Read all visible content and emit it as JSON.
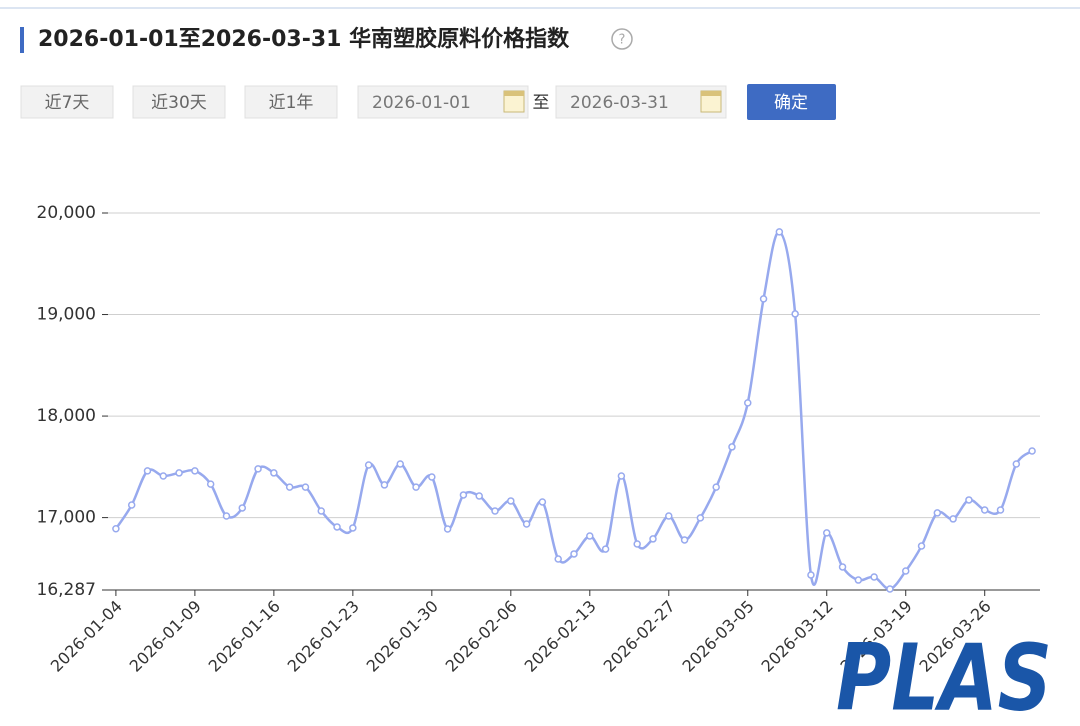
{
  "header": {
    "title": "2026-01-01至2026-03-31 华南塑胶原料价格指数",
    "help_icon": "?"
  },
  "controls": {
    "buttons": [
      "近7天",
      "近30天",
      "近1年"
    ],
    "start_date": "2026-01-01",
    "separator": "至",
    "end_date": "2026-03-31",
    "confirm": "确定"
  },
  "logo": "PLAS",
  "chart_data": {
    "type": "line",
    "categories": [
      "2026-01-04",
      null,
      null,
      null,
      null,
      "2026-01-09",
      null,
      null,
      null,
      null,
      "2026-01-16",
      null,
      null,
      null,
      null,
      "2026-01-23",
      null,
      null,
      null,
      null,
      "2026-01-30",
      null,
      null,
      null,
      null,
      "2026-02-06",
      null,
      null,
      null,
      null,
      "2026-02-13",
      null,
      null,
      null,
      null,
      "2026-02-27",
      null,
      null,
      null,
      null,
      "2026-03-05",
      null,
      null,
      null,
      null,
      "2026-03-12",
      null,
      null,
      null,
      null,
      "2026-03-19",
      null,
      null,
      null,
      null,
      "2026-03-26",
      null,
      null,
      null
    ],
    "values": [
      16890,
      17124,
      17460,
      17410,
      17440,
      17460,
      17330,
      17016,
      17095,
      17480,
      17440,
      17300,
      17300,
      17065,
      16908,
      16898,
      17518,
      17322,
      17528,
      17300,
      17400,
      16888,
      17223,
      17213,
      17065,
      17164,
      16937,
      17154,
      16592,
      16642,
      16819,
      16690,
      17410,
      16740,
      16790,
      17016,
      16780,
      16997,
      17300,
      17696,
      18130,
      19154,
      19814,
      19006,
      16435,
      16849,
      16514,
      16385,
      16415,
      16297,
      16474,
      16720,
      17046,
      16987,
      17174,
      17075,
      17075,
      17528,
      17656
    ],
    "color": "#97a9ee",
    "ylim": [
      16287,
      20000
    ],
    "yticks": [
      {
        "value": 16287,
        "label": "16,287"
      },
      {
        "value": 17000,
        "label": "17,000"
      },
      {
        "value": 18000,
        "label": "18,000"
      },
      {
        "value": 19000,
        "label": "19,000"
      },
      {
        "value": 20000,
        "label": "20,000"
      }
    ],
    "grid": true
  }
}
